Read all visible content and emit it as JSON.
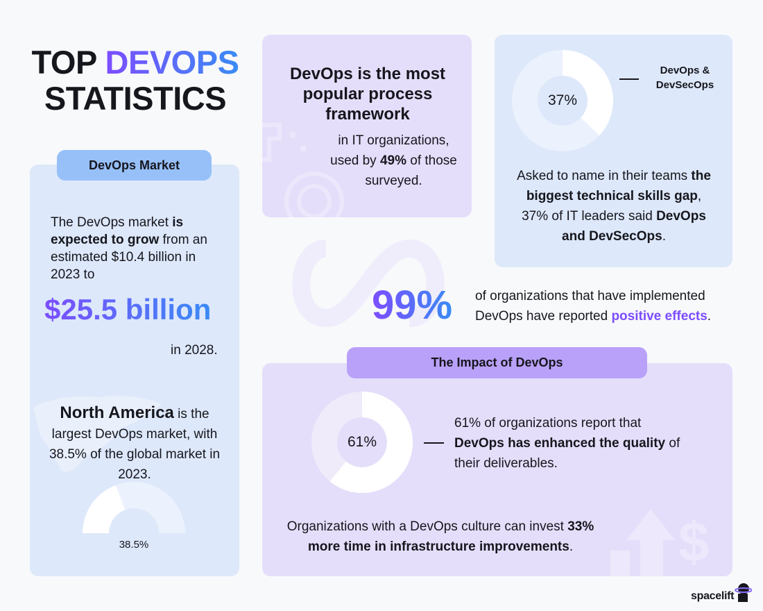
{
  "title": {
    "line1_a": "TOP",
    "line1_b": "DEVOPS",
    "line2": "STATISTICS"
  },
  "market": {
    "pill": "DevOps Market",
    "p1_a": "The DevOps market ",
    "p1_b": "is expected to grow",
    "p1_c": " from an estimated $10.4 billion in 2023 to",
    "big": "$25.5 billion",
    "year": "in 2028.",
    "na_a": "North America",
    "na_b": " is the largest DevOps market, with 38.5% of the global market in 2023.",
    "gauge_label": "38.5%",
    "gauge_value": 38.5
  },
  "framework": {
    "heading": "DevOps is the most popular process framework",
    "text_a": "in IT organizations, used by ",
    "text_b": "49%",
    "text_c": " of those surveyed."
  },
  "skills": {
    "donut_label": "37%",
    "donut_value": 37,
    "legend": "DevOps & DevSecOps",
    "p_a": "Asked to name in their teams ",
    "p_b": "the biggest technical skills gap",
    "p_c": ", 37% of IT leaders said ",
    "p_d": "DevOps and DevSecOps",
    "p_e": "."
  },
  "positive": {
    "big": "99%",
    "text_a": "of organizations that have implemented DevOps have reported ",
    "text_b": "positive effects",
    "text_c": "."
  },
  "impact": {
    "pill": "The Impact of DevOps",
    "donut_label": "61%",
    "donut_value": 61,
    "q_a": "61% of organizations report that ",
    "q_b": "DevOps has enhanced the quality",
    "q_c": " of their deliverables.",
    "c_a": "Organizations with a DevOps culture can invest ",
    "c_b": "33% more time in infrastructure improvements",
    "c_c": "."
  },
  "brand": {
    "name": "spacelift"
  },
  "colors": {
    "blue_card": "#dde8fa",
    "purple_card": "#e5defa",
    "blue_pill": "#97c0f8",
    "purple_pill": "#b9a1f9",
    "gradient_start": "#7c4dff",
    "gradient_end": "#3a8bf5",
    "highlight": "#7c4dff"
  }
}
